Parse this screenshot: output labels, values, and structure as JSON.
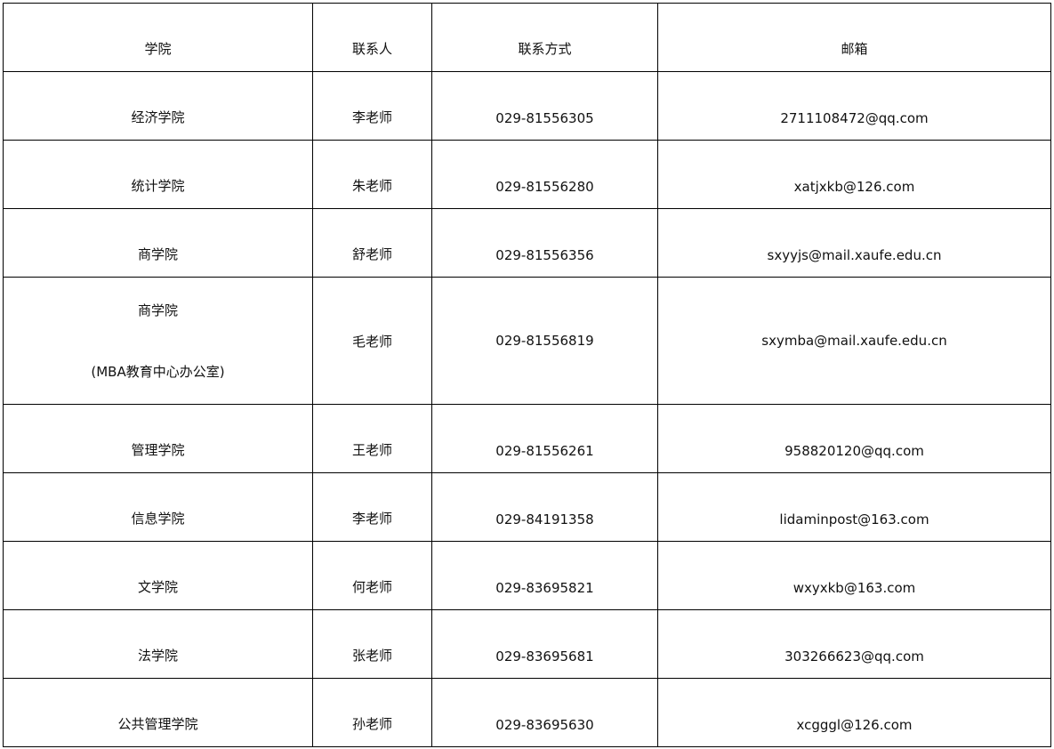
{
  "table": {
    "headers": [
      "学院",
      "联系人",
      "联系方式",
      "邮箱"
    ],
    "rows": [
      {
        "college": "经济学院",
        "contact": "李老师",
        "phone": "029-81556305",
        "email": "2711108472@qq.com"
      },
      {
        "college": "统计学院",
        "contact": "朱老师",
        "phone": "029-81556280",
        "email": "xatjxkb@126.com"
      },
      {
        "college": "商学院",
        "contact": "舒老师",
        "phone": "029-81556356",
        "email": "sxyyjs@mail.xaufe.edu.cn"
      },
      {
        "college": "商学院",
        "college_sub": "(MBA教育中心办公室)",
        "contact": "毛老师",
        "phone": "029-81556819",
        "email": "sxymba@mail.xaufe.edu.cn"
      },
      {
        "college": "管理学院",
        "contact": "王老师",
        "phone": "029-81556261",
        "email": "958820120@qq.com"
      },
      {
        "college": "信息学院",
        "contact": "李老师",
        "phone": "029-84191358",
        "email": "lidaminpost@163.com"
      },
      {
        "college": "文学院",
        "contact": "何老师",
        "phone": "029-83695821",
        "email": "wxyxkb@163.com"
      },
      {
        "college": "法学院",
        "contact": "张老师",
        "phone": "029-83695681",
        "email": "303266623@qq.com"
      },
      {
        "college": "公共管理学院",
        "contact": "孙老师",
        "phone": "029-83695630",
        "email": "xcgggl@126.com"
      }
    ]
  }
}
